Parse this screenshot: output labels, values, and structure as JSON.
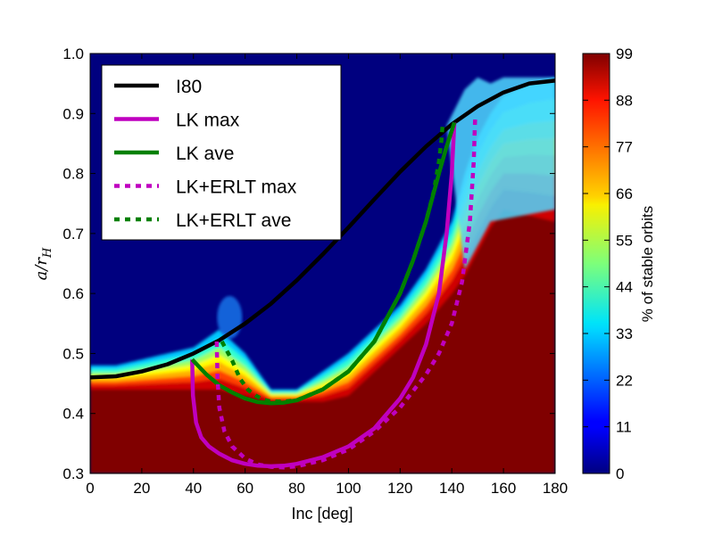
{
  "chart_data": {
    "type": "heatmap",
    "xlabel": "Inc [deg]",
    "ylabel": "a/r_H",
    "xlim": [
      0,
      180
    ],
    "ylim": [
      0.3,
      1.0
    ],
    "xticks": [
      "0",
      "20",
      "40",
      "60",
      "80",
      "100",
      "120",
      "140",
      "160",
      "180"
    ],
    "yticks": [
      "0.3",
      "0.4",
      "0.5",
      "0.6",
      "0.7",
      "0.8",
      "0.9",
      "1.0"
    ],
    "colorbar": {
      "label": "% of stable orbits",
      "ticks": [
        "0",
        "11",
        "22",
        "33",
        "44",
        "55",
        "66",
        "77",
        "88",
        "99"
      ],
      "range": [
        0,
        99
      ],
      "colormap": "jet"
    },
    "stability_boundary": {
      "description_values": "approximate a/r_H where stable fraction drops from 99% to 0%",
      "inc": [
        0,
        10,
        20,
        30,
        40,
        50,
        60,
        70,
        80,
        90,
        100,
        110,
        120,
        130,
        140,
        145,
        150,
        155,
        160,
        170,
        180
      ],
      "a_full_stable": [
        0.44,
        0.44,
        0.44,
        0.44,
        0.44,
        0.44,
        0.43,
        0.42,
        0.42,
        0.42,
        0.43,
        0.47,
        0.51,
        0.55,
        0.6,
        0.63,
        0.67,
        0.71,
        0.74,
        0.73,
        0.72
      ],
      "a_zero_stable": [
        0.48,
        0.48,
        0.49,
        0.5,
        0.51,
        0.54,
        0.5,
        0.44,
        0.44,
        0.47,
        0.5,
        0.54,
        0.58,
        0.64,
        0.72,
        0.8,
        0.86,
        0.9,
        0.93,
        0.95,
        0.96
      ]
    },
    "series": [
      {
        "name": "I80",
        "style": "solid",
        "color": "#000000",
        "x": [
          0,
          10,
          20,
          30,
          40,
          50,
          60,
          70,
          80,
          90,
          100,
          110,
          120,
          130,
          140,
          150,
          160,
          170,
          180
        ],
        "y": [
          0.46,
          0.462,
          0.47,
          0.482,
          0.5,
          0.522,
          0.55,
          0.583,
          0.622,
          0.665,
          0.71,
          0.757,
          0.803,
          0.845,
          0.882,
          0.912,
          0.935,
          0.95,
          0.955
        ]
      },
      {
        "name": "LK max",
        "style": "solid",
        "color": "#bf00bf",
        "x": [
          39.5,
          39.8,
          41,
          43,
          46,
          50,
          55,
          60,
          65,
          70,
          75,
          80,
          90,
          100,
          110,
          120,
          125,
          130,
          135,
          138,
          140,
          141
        ],
        "y": [
          0.49,
          0.43,
          0.385,
          0.36,
          0.345,
          0.333,
          0.322,
          0.316,
          0.313,
          0.312,
          0.313,
          0.316,
          0.327,
          0.345,
          0.375,
          0.425,
          0.46,
          0.515,
          0.6,
          0.7,
          0.8,
          0.885
        ]
      },
      {
        "name": "LK ave",
        "style": "solid",
        "color": "#008000",
        "x": [
          39.5,
          45,
          50,
          55,
          60,
          65,
          70,
          75,
          80,
          90,
          100,
          110,
          120,
          125,
          130,
          135,
          138,
          141
        ],
        "y": [
          0.49,
          0.465,
          0.447,
          0.435,
          0.425,
          0.419,
          0.417,
          0.418,
          0.422,
          0.44,
          0.47,
          0.52,
          0.6,
          0.655,
          0.72,
          0.8,
          0.845,
          0.885
        ]
      },
      {
        "name": "LK+ERLT max",
        "style": "dotted",
        "color": "#bf00bf",
        "x": [
          49,
          49.3,
          50,
          52,
          55,
          60,
          65,
          70,
          75,
          80,
          90,
          100,
          110,
          120,
          130,
          135,
          140,
          144,
          147,
          148.5,
          149
        ],
        "y": [
          0.52,
          0.46,
          0.41,
          0.37,
          0.345,
          0.325,
          0.315,
          0.311,
          0.31,
          0.312,
          0.322,
          0.34,
          0.37,
          0.41,
          0.465,
          0.5,
          0.55,
          0.62,
          0.72,
          0.82,
          0.89
        ]
      },
      {
        "name": "LK+ERLT ave",
        "style": "dotted",
        "color": "#008000",
        "x": [
          51,
          55,
          58,
          61,
          64,
          67,
          70,
          75,
          80,
          90,
          100,
          110,
          120,
          125,
          130,
          133,
          135,
          136,
          136.5
        ],
        "y": [
          0.52,
          0.488,
          0.458,
          0.44,
          0.43,
          0.423,
          0.42,
          0.42,
          0.422,
          0.44,
          0.47,
          0.52,
          0.6,
          0.655,
          0.72,
          0.77,
          0.82,
          0.855,
          0.885
        ]
      }
    ],
    "legend_position": "upper-left",
    "grid": false
  }
}
